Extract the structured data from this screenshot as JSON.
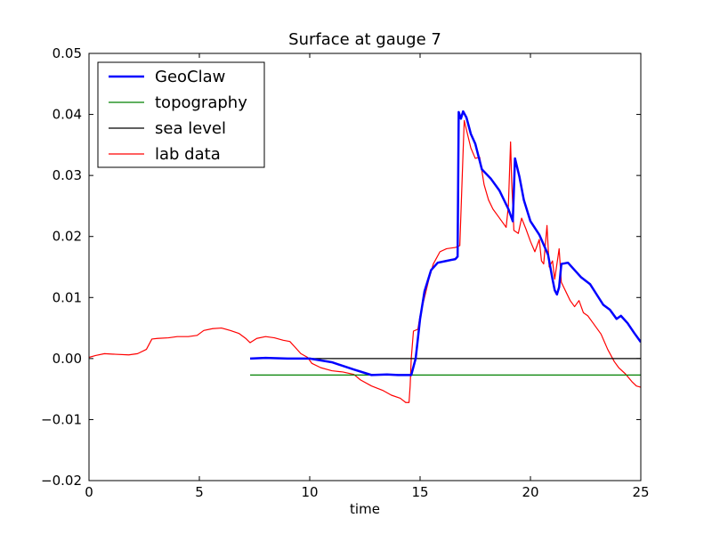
{
  "chart_data": {
    "type": "line",
    "title": "Surface at gauge 7",
    "xlabel": "time",
    "ylabel": "",
    "xlim": [
      0,
      25
    ],
    "ylim": [
      -0.02,
      0.05
    ],
    "xticks": [
      0,
      5,
      10,
      15,
      20,
      25
    ],
    "xtick_labels": [
      "0",
      "5",
      "10",
      "15",
      "20",
      "25"
    ],
    "yticks": [
      -0.02,
      -0.01,
      0.0,
      0.01,
      0.02,
      0.03,
      0.04,
      0.05
    ],
    "ytick_labels": [
      "−0.02",
      "−0.01",
      "0.00",
      "0.01",
      "0.02",
      "0.03",
      "0.04",
      "0.05"
    ],
    "grid": false,
    "legend": {
      "position": "top-left"
    },
    "series": [
      {
        "name": "GeoClaw",
        "color": "#0000ff",
        "points": [
          [
            7.3,
            0.0
          ],
          [
            8.0,
            0.0001
          ],
          [
            9.0,
            0.0
          ],
          [
            10.0,
            0.0
          ],
          [
            11.0,
            -0.0006
          ],
          [
            12.0,
            -0.0018
          ],
          [
            12.8,
            -0.0027
          ],
          [
            13.5,
            -0.0026
          ],
          [
            14.0,
            -0.0027
          ],
          [
            14.6,
            -0.0027
          ],
          [
            14.8,
            0.0
          ],
          [
            15.0,
            0.0065
          ],
          [
            15.2,
            0.011
          ],
          [
            15.5,
            0.0145
          ],
          [
            15.8,
            0.0157
          ],
          [
            16.2,
            0.016
          ],
          [
            16.6,
            0.0163
          ],
          [
            16.7,
            0.0167
          ],
          [
            16.75,
            0.0404
          ],
          [
            16.85,
            0.0393
          ],
          [
            16.95,
            0.0405
          ],
          [
            17.1,
            0.0395
          ],
          [
            17.3,
            0.0368
          ],
          [
            17.5,
            0.0352
          ],
          [
            17.8,
            0.031
          ],
          [
            18.2,
            0.0295
          ],
          [
            18.6,
            0.0275
          ],
          [
            19.0,
            0.0245
          ],
          [
            19.2,
            0.0225
          ],
          [
            19.3,
            0.0328
          ],
          [
            19.5,
            0.0298
          ],
          [
            19.7,
            0.026
          ],
          [
            20.0,
            0.0225
          ],
          [
            20.4,
            0.0203
          ],
          [
            20.8,
            0.017
          ],
          [
            21.0,
            0.013
          ],
          [
            21.1,
            0.0112
          ],
          [
            21.2,
            0.0105
          ],
          [
            21.3,
            0.0117
          ],
          [
            21.4,
            0.0155
          ],
          [
            21.7,
            0.0157
          ],
          [
            22.0,
            0.0145
          ],
          [
            22.3,
            0.0133
          ],
          [
            22.7,
            0.0122
          ],
          [
            23.0,
            0.0105
          ],
          [
            23.3,
            0.0088
          ],
          [
            23.6,
            0.008
          ],
          [
            23.9,
            0.0065
          ],
          [
            24.1,
            0.007
          ],
          [
            24.4,
            0.0058
          ],
          [
            24.7,
            0.0042
          ],
          [
            25.0,
            0.0027
          ]
        ]
      },
      {
        "name": "topography",
        "color": "#008000",
        "points": [
          [
            7.3,
            -0.0027
          ],
          [
            25.0,
            -0.0027
          ]
        ]
      },
      {
        "name": "sea level",
        "color": "#000000",
        "points": [
          [
            7.3,
            0.0
          ],
          [
            25.0,
            0.0
          ]
        ]
      },
      {
        "name": "lab data",
        "color": "#ff0000",
        "points": [
          [
            0.0,
            0.0002
          ],
          [
            0.3,
            0.0005
          ],
          [
            0.7,
            0.0008
          ],
          [
            1.2,
            0.0007
          ],
          [
            1.8,
            0.0006
          ],
          [
            2.2,
            0.0008
          ],
          [
            2.6,
            0.0015
          ],
          [
            2.85,
            0.0032
          ],
          [
            3.1,
            0.0033
          ],
          [
            3.6,
            0.0034
          ],
          [
            4.0,
            0.0036
          ],
          [
            4.5,
            0.0036
          ],
          [
            4.9,
            0.0038
          ],
          [
            5.2,
            0.0046
          ],
          [
            5.6,
            0.0049
          ],
          [
            6.0,
            0.005
          ],
          [
            6.4,
            0.0046
          ],
          [
            6.8,
            0.0041
          ],
          [
            7.1,
            0.0033
          ],
          [
            7.3,
            0.0026
          ],
          [
            7.6,
            0.0033
          ],
          [
            8.0,
            0.0036
          ],
          [
            8.4,
            0.0034
          ],
          [
            8.8,
            0.003
          ],
          [
            9.1,
            0.0028
          ],
          [
            9.3,
            0.002
          ],
          [
            9.6,
            0.0008
          ],
          [
            9.9,
            0.0002
          ],
          [
            10.1,
            -0.0008
          ],
          [
            10.5,
            -0.0015
          ],
          [
            11.0,
            -0.002
          ],
          [
            11.5,
            -0.0022
          ],
          [
            12.0,
            -0.0026
          ],
          [
            12.3,
            -0.0035
          ],
          [
            12.8,
            -0.0045
          ],
          [
            13.3,
            -0.0052
          ],
          [
            13.7,
            -0.006
          ],
          [
            14.1,
            -0.0065
          ],
          [
            14.35,
            -0.0072
          ],
          [
            14.5,
            -0.0072
          ],
          [
            14.55,
            -0.0045
          ],
          [
            14.6,
            0.0
          ],
          [
            14.7,
            0.0045
          ],
          [
            14.9,
            0.0048
          ],
          [
            15.0,
            0.007
          ],
          [
            15.2,
            0.01
          ],
          [
            15.4,
            0.013
          ],
          [
            15.6,
            0.0155
          ],
          [
            15.9,
            0.0175
          ],
          [
            16.2,
            0.018
          ],
          [
            16.6,
            0.0182
          ],
          [
            16.8,
            0.0185
          ],
          [
            16.95,
            0.034
          ],
          [
            17.0,
            0.039
          ],
          [
            17.1,
            0.0375
          ],
          [
            17.3,
            0.0345
          ],
          [
            17.5,
            0.0328
          ],
          [
            17.7,
            0.033
          ],
          [
            17.9,
            0.0285
          ],
          [
            18.1,
            0.026
          ],
          [
            18.3,
            0.0245
          ],
          [
            18.5,
            0.0235
          ],
          [
            18.7,
            0.0225
          ],
          [
            18.9,
            0.0215
          ],
          [
            19.0,
            0.025
          ],
          [
            19.1,
            0.0355
          ],
          [
            19.15,
            0.029
          ],
          [
            19.25,
            0.021
          ],
          [
            19.45,
            0.0205
          ],
          [
            19.6,
            0.023
          ],
          [
            19.8,
            0.0212
          ],
          [
            20.0,
            0.0192
          ],
          [
            20.2,
            0.0175
          ],
          [
            20.4,
            0.0195
          ],
          [
            20.5,
            0.016
          ],
          [
            20.6,
            0.0155
          ],
          [
            20.75,
            0.0218
          ],
          [
            20.85,
            0.015
          ],
          [
            21.0,
            0.016
          ],
          [
            21.1,
            0.013
          ],
          [
            21.3,
            0.018
          ],
          [
            21.4,
            0.0125
          ],
          [
            21.6,
            0.011
          ],
          [
            21.8,
            0.0095
          ],
          [
            22.0,
            0.0085
          ],
          [
            22.2,
            0.0095
          ],
          [
            22.4,
            0.0075
          ],
          [
            22.6,
            0.007
          ],
          [
            22.8,
            0.006
          ],
          [
            23.0,
            0.005
          ],
          [
            23.2,
            0.004
          ],
          [
            23.5,
            0.0015
          ],
          [
            23.8,
            -0.0005
          ],
          [
            24.0,
            -0.0015
          ],
          [
            24.3,
            -0.0025
          ],
          [
            24.6,
            -0.0038
          ],
          [
            24.8,
            -0.0045
          ],
          [
            25.0,
            -0.0047
          ]
        ]
      }
    ]
  }
}
